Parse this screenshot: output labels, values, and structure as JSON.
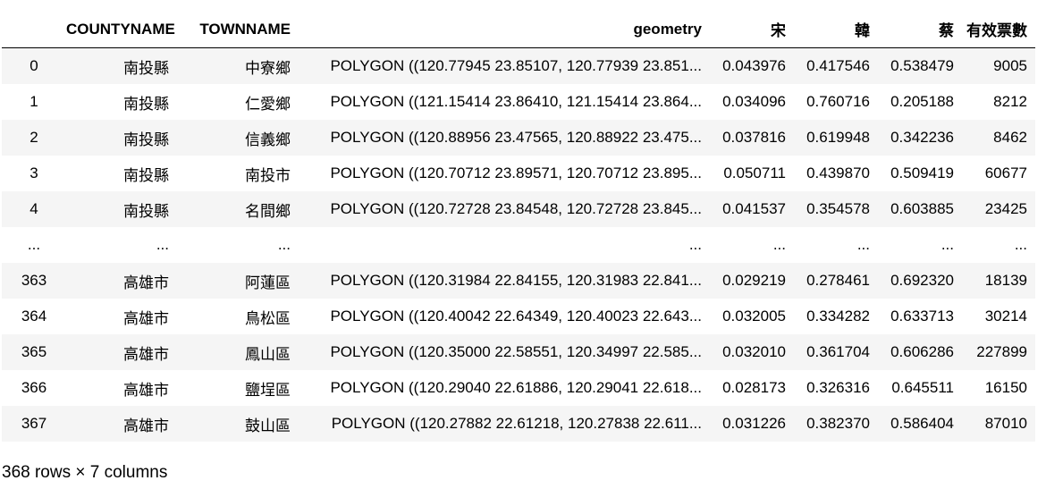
{
  "columns": [
    "",
    "COUNTYNAME",
    "TOWNNAME",
    "geometry",
    "宋",
    "韓",
    "蔡",
    "有效票數"
  ],
  "rows": [
    [
      "0",
      "南投縣",
      "中寮鄉",
      "POLYGON ((120.77945 23.85107, 120.77939 23.851...",
      "0.043976",
      "0.417546",
      "0.538479",
      "9005"
    ],
    [
      "1",
      "南投縣",
      "仁愛鄉",
      "POLYGON ((121.15414 23.86410, 121.15414 23.864...",
      "0.034096",
      "0.760716",
      "0.205188",
      "8212"
    ],
    [
      "2",
      "南投縣",
      "信義鄉",
      "POLYGON ((120.88956 23.47565, 120.88922 23.475...",
      "0.037816",
      "0.619948",
      "0.342236",
      "8462"
    ],
    [
      "3",
      "南投縣",
      "南投市",
      "POLYGON ((120.70712 23.89571, 120.70712 23.895...",
      "0.050711",
      "0.439870",
      "0.509419",
      "60677"
    ],
    [
      "4",
      "南投縣",
      "名間鄉",
      "POLYGON ((120.72728 23.84548, 120.72728 23.845...",
      "0.041537",
      "0.354578",
      "0.603885",
      "23425"
    ],
    [
      "...",
      "...",
      "...",
      "...",
      "...",
      "...",
      "...",
      "..."
    ],
    [
      "363",
      "高雄市",
      "阿蓮區",
      "POLYGON ((120.31984 22.84155, 120.31983 22.841...",
      "0.029219",
      "0.278461",
      "0.692320",
      "18139"
    ],
    [
      "364",
      "高雄市",
      "鳥松區",
      "POLYGON ((120.40042 22.64349, 120.40023 22.643...",
      "0.032005",
      "0.334282",
      "0.633713",
      "30214"
    ],
    [
      "365",
      "高雄市",
      "鳳山區",
      "POLYGON ((120.35000 22.58551, 120.34997 22.585...",
      "0.032010",
      "0.361704",
      "0.606286",
      "227899"
    ],
    [
      "366",
      "高雄市",
      "鹽埕區",
      "POLYGON ((120.29040 22.61886, 120.29041 22.618...",
      "0.028173",
      "0.326316",
      "0.645511",
      "16150"
    ],
    [
      "367",
      "高雄市",
      "鼓山區",
      "POLYGON ((120.27882 22.61218, 120.27838 22.611...",
      "0.031226",
      "0.382370",
      "0.586404",
      "87010"
    ]
  ],
  "footer": "368 rows × 7 columns"
}
